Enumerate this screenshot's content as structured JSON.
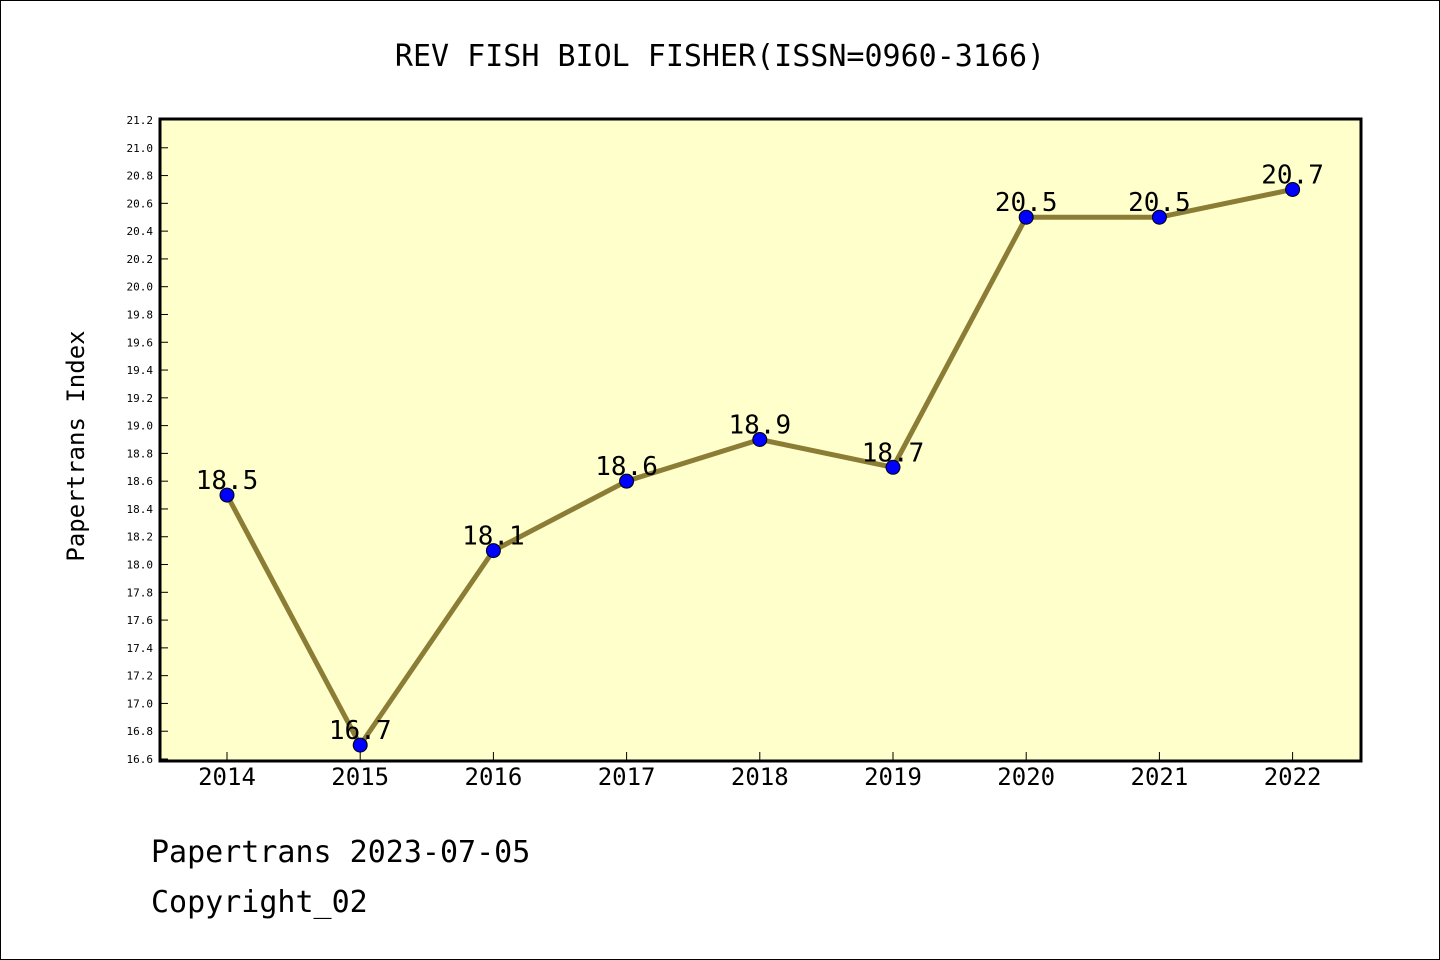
{
  "chart_data": {
    "type": "line",
    "title": "REV FISH BIOL FISHER(ISSN=0960-3166)",
    "xlabel": "",
    "ylabel": "Papertrans Index",
    "categories": [
      "2014",
      "2015",
      "2016",
      "2017",
      "2018",
      "2019",
      "2020",
      "2021",
      "2022"
    ],
    "series": [
      {
        "values": [
          18.5,
          16.7,
          18.1,
          18.6,
          18.9,
          18.7,
          20.5,
          20.5,
          20.7
        ],
        "data_labels": [
          "18.5",
          "16.7",
          "18.1",
          "18.6",
          "18.9",
          "18.7",
          "20.5",
          "20.5",
          "20.7"
        ]
      }
    ],
    "ylim": [
      16.6,
      21.2
    ],
    "ytick_step": 0.2,
    "grid": false,
    "colors": {
      "plot_background": "#ffffcc",
      "line": "#8b7d35",
      "marker": "#0000ff",
      "axes": "#000000"
    }
  },
  "footer": {
    "line1": "Papertrans 2023-07-05",
    "line2": "Copyright_02"
  }
}
